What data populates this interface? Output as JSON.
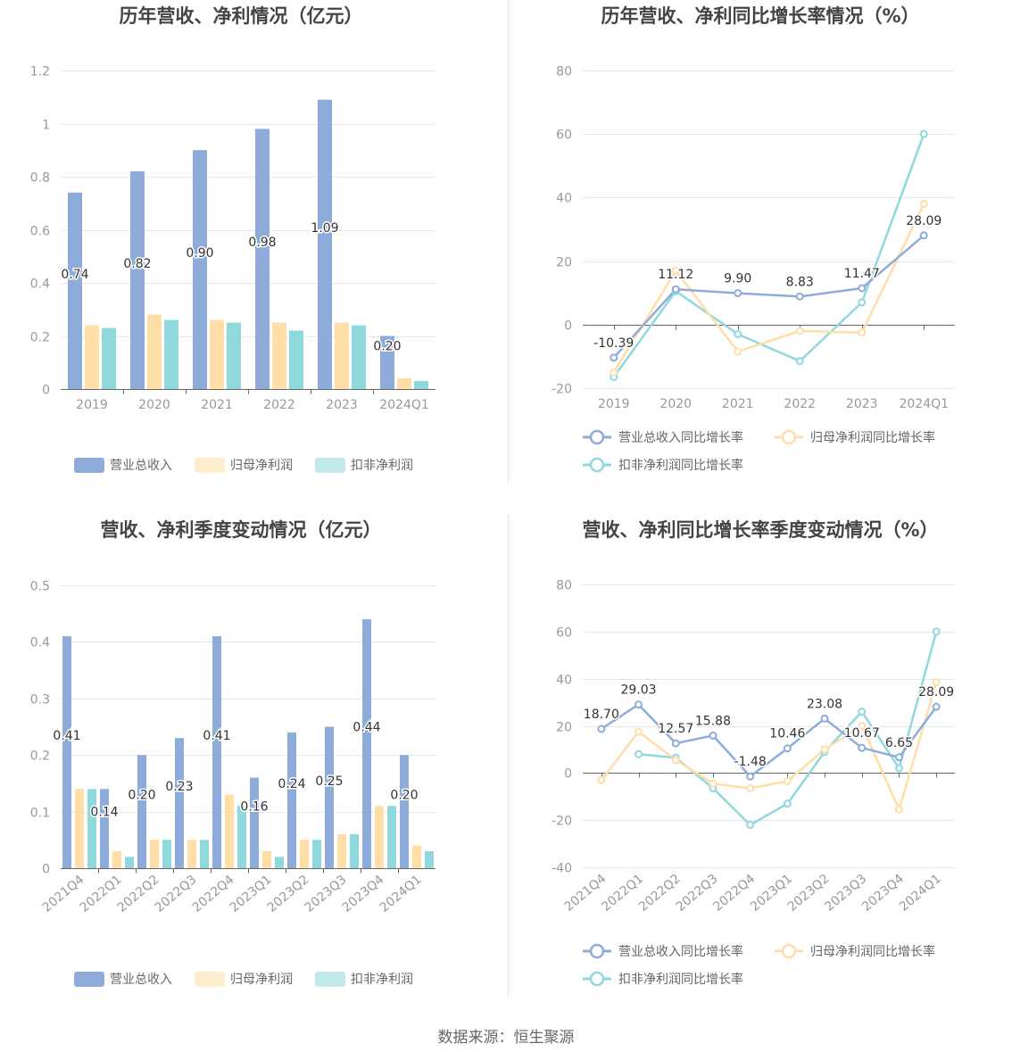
{
  "source_text": "数据来源：恒生聚源",
  "colors": {
    "revenue": "#8eacd9",
    "net_profit": "#ffdea8",
    "deducted_profit": "#8fd8dc",
    "grid": "#e4e7ef",
    "axis": "#666666",
    "divider": "#e6e6e6"
  },
  "chart_data": [
    {
      "type": "bar",
      "title": "历年营收、净利情况（亿元）",
      "categories": [
        "2019",
        "2020",
        "2021",
        "2022",
        "2023",
        "2024Q1"
      ],
      "ylim": [
        0,
        1.2
      ],
      "yticks": [
        "0",
        "0.2",
        "0.4",
        "0.6",
        "0.8",
        "1",
        "1.2"
      ],
      "grid": true,
      "legend_position": "bottom",
      "series": [
        {
          "name": "营业总收入",
          "values": [
            0.74,
            0.82,
            0.9,
            0.98,
            1.09,
            0.2
          ],
          "labels": [
            "0.74",
            "0.82",
            "0.90",
            "0.98",
            "1.09",
            "0.20"
          ]
        },
        {
          "name": "归母净利润",
          "values": [
            0.24,
            0.28,
            0.26,
            0.25,
            0.25,
            0.04
          ]
        },
        {
          "name": "扣非净利润",
          "values": [
            0.23,
            0.26,
            0.25,
            0.22,
            0.24,
            0.03
          ]
        }
      ]
    },
    {
      "type": "line",
      "title": "历年营收、净利同比增长率情况（%）",
      "categories": [
        "2019",
        "2020",
        "2021",
        "2022",
        "2023",
        "2024Q1"
      ],
      "ylim": [
        -20,
        80
      ],
      "yticks": [
        "-20",
        "0",
        "20",
        "40",
        "60",
        "80"
      ],
      "grid": true,
      "legend_position": "bottom",
      "series": [
        {
          "name": "营业总收入同比增长率",
          "values": [
            -10.39,
            11.12,
            9.9,
            8.83,
            11.47,
            28.09
          ],
          "labels": [
            "-10.39",
            "11.12",
            "9.90",
            "8.83",
            "11.47",
            "28.09"
          ]
        },
        {
          "name": "归母净利润同比增长率",
          "values": [
            -15,
            17,
            -8.5,
            -2,
            -2.5,
            38
          ]
        },
        {
          "name": "扣非净利润同比增长率",
          "values": [
            -16.5,
            10.5,
            -3,
            -11.5,
            7,
            60
          ]
        }
      ]
    },
    {
      "type": "bar",
      "title": "营收、净利季度变动情况（亿元）",
      "categories": [
        "2021Q4",
        "2022Q1",
        "2022Q2",
        "2022Q3",
        "2022Q4",
        "2023Q1",
        "2023Q2",
        "2023Q3",
        "2023Q4",
        "2024Q1"
      ],
      "ylim": [
        0,
        0.5
      ],
      "yticks": [
        "0",
        "0.1",
        "0.2",
        "0.3",
        "0.4",
        "0.5"
      ],
      "grid": true,
      "legend_position": "bottom",
      "series": [
        {
          "name": "营业总收入",
          "values": [
            0.41,
            0.14,
            0.2,
            0.23,
            0.41,
            0.16,
            0.24,
            0.25,
            0.44,
            0.2
          ],
          "labels": [
            "0.41",
            "0.14",
            "0.20",
            "0.23",
            "0.41",
            "0.16",
            "0.24",
            "0.25",
            "0.44",
            "0.20"
          ]
        },
        {
          "name": "归母净利润",
          "values": [
            0.14,
            0.03,
            0.05,
            0.05,
            0.13,
            0.03,
            0.05,
            0.06,
            0.11,
            0.04
          ]
        },
        {
          "name": "扣非净利润",
          "values": [
            0.14,
            0.02,
            0.05,
            0.05,
            0.11,
            0.02,
            0.05,
            0.06,
            0.11,
            0.03
          ]
        }
      ]
    },
    {
      "type": "line",
      "title": "营收、净利同比增长率季度变动情况（%）",
      "categories": [
        "2021Q4",
        "2022Q1",
        "2022Q2",
        "2022Q3",
        "2022Q4",
        "2023Q1",
        "2023Q2",
        "2023Q3",
        "2023Q4",
        "2024Q1"
      ],
      "ylim": [
        -40,
        80
      ],
      "yticks": [
        "-40",
        "-20",
        "0",
        "20",
        "40",
        "60",
        "80"
      ],
      "grid": true,
      "legend_position": "bottom",
      "series": [
        {
          "name": "营业总收入同比增长率",
          "values": [
            18.7,
            29.03,
            12.57,
            15.88,
            -1.48,
            10.46,
            23.08,
            10.67,
            6.65,
            28.09
          ],
          "labels": [
            "18.70",
            "29.03",
            "12.57",
            "15.88",
            "-1.48",
            "10.46",
            "23.08",
            "10.67",
            "6.65",
            "28.09"
          ]
        },
        {
          "name": "归母净利润同比增长率",
          "values": [
            -3,
            17.5,
            5.5,
            -4.5,
            -6.5,
            -3.5,
            10,
            20,
            -15.5,
            38.5
          ]
        },
        {
          "name": "扣非净利润同比增长率",
          "values": [
            null,
            8,
            6.5,
            -6.5,
            -22,
            -13,
            9,
            26,
            2,
            60
          ]
        }
      ]
    }
  ]
}
